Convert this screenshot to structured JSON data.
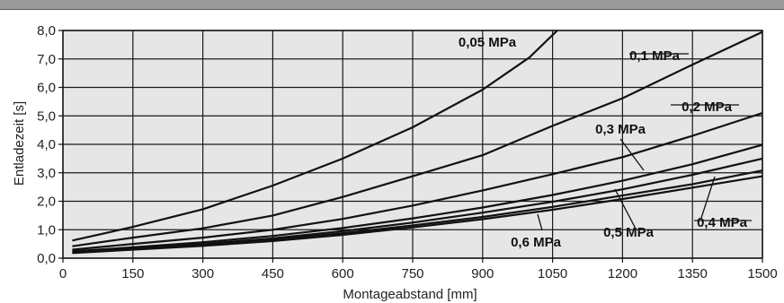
{
  "chart_data": {
    "type": "line",
    "xlabel": "Montageabstand [mm]",
    "ylabel": "Entladezeit [s]",
    "xlim": [
      0,
      1500
    ],
    "ylim": [
      0,
      8
    ],
    "xticks": [
      "0",
      "150",
      "300",
      "450",
      "600",
      "750",
      "900",
      "1050",
      "1200",
      "1350",
      "1500"
    ],
    "yticks": [
      "0,0",
      "1,0",
      "2,0",
      "3,0",
      "4,0",
      "5,0",
      "6,0",
      "7,0",
      "8,0"
    ],
    "grid": true,
    "background": "#e6e6e6",
    "series": [
      {
        "name": "0,05 MPa",
        "x": [
          20,
          150,
          300,
          450,
          600,
          750,
          900,
          1000,
          1060
        ],
        "y": [
          0.62,
          1.1,
          1.72,
          2.55,
          3.5,
          4.6,
          5.92,
          7.05,
          8.0
        ]
      },
      {
        "name": "0,1 MPa",
        "x": [
          20,
          150,
          300,
          450,
          600,
          750,
          900,
          1050,
          1200,
          1350,
          1500
        ],
        "y": [
          0.42,
          0.72,
          1.05,
          1.5,
          2.15,
          2.88,
          3.62,
          4.65,
          5.62,
          6.8,
          7.95
        ]
      },
      {
        "name": "0,2 MPa",
        "x": [
          20,
          150,
          300,
          450,
          600,
          750,
          900,
          1050,
          1200,
          1350,
          1500
        ],
        "y": [
          0.3,
          0.5,
          0.72,
          1.0,
          1.38,
          1.85,
          2.38,
          2.95,
          3.55,
          4.3,
          5.1
        ]
      },
      {
        "name": "0,3 MPa",
        "x": [
          20,
          150,
          300,
          450,
          600,
          750,
          900,
          1050,
          1200,
          1350,
          1500
        ],
        "y": [
          0.24,
          0.38,
          0.56,
          0.78,
          1.06,
          1.4,
          1.78,
          2.22,
          2.72,
          3.3,
          3.98
        ]
      },
      {
        "name": "0,4 MPa",
        "x": [
          20,
          150,
          300,
          450,
          600,
          750,
          900,
          1050,
          1200,
          1350,
          1500
        ],
        "y": [
          0.22,
          0.35,
          0.5,
          0.7,
          0.95,
          1.25,
          1.6,
          1.98,
          2.42,
          2.93,
          3.5
        ]
      },
      {
        "name": "0,5 MPa",
        "x": [
          20,
          150,
          300,
          450,
          600,
          750,
          900,
          1050,
          1200,
          1350,
          1500
        ],
        "y": [
          0.2,
          0.32,
          0.46,
          0.65,
          0.88,
          1.15,
          1.45,
          1.8,
          2.2,
          2.6,
          3.08
        ]
      },
      {
        "name": "0,6 MPa",
        "x": [
          20,
          150,
          300,
          450,
          600,
          750,
          900,
          1050,
          1200,
          1350,
          1500
        ],
        "y": [
          0.18,
          0.3,
          0.43,
          0.6,
          0.82,
          1.08,
          1.37,
          1.7,
          2.08,
          2.48,
          2.88
        ]
      }
    ]
  }
}
